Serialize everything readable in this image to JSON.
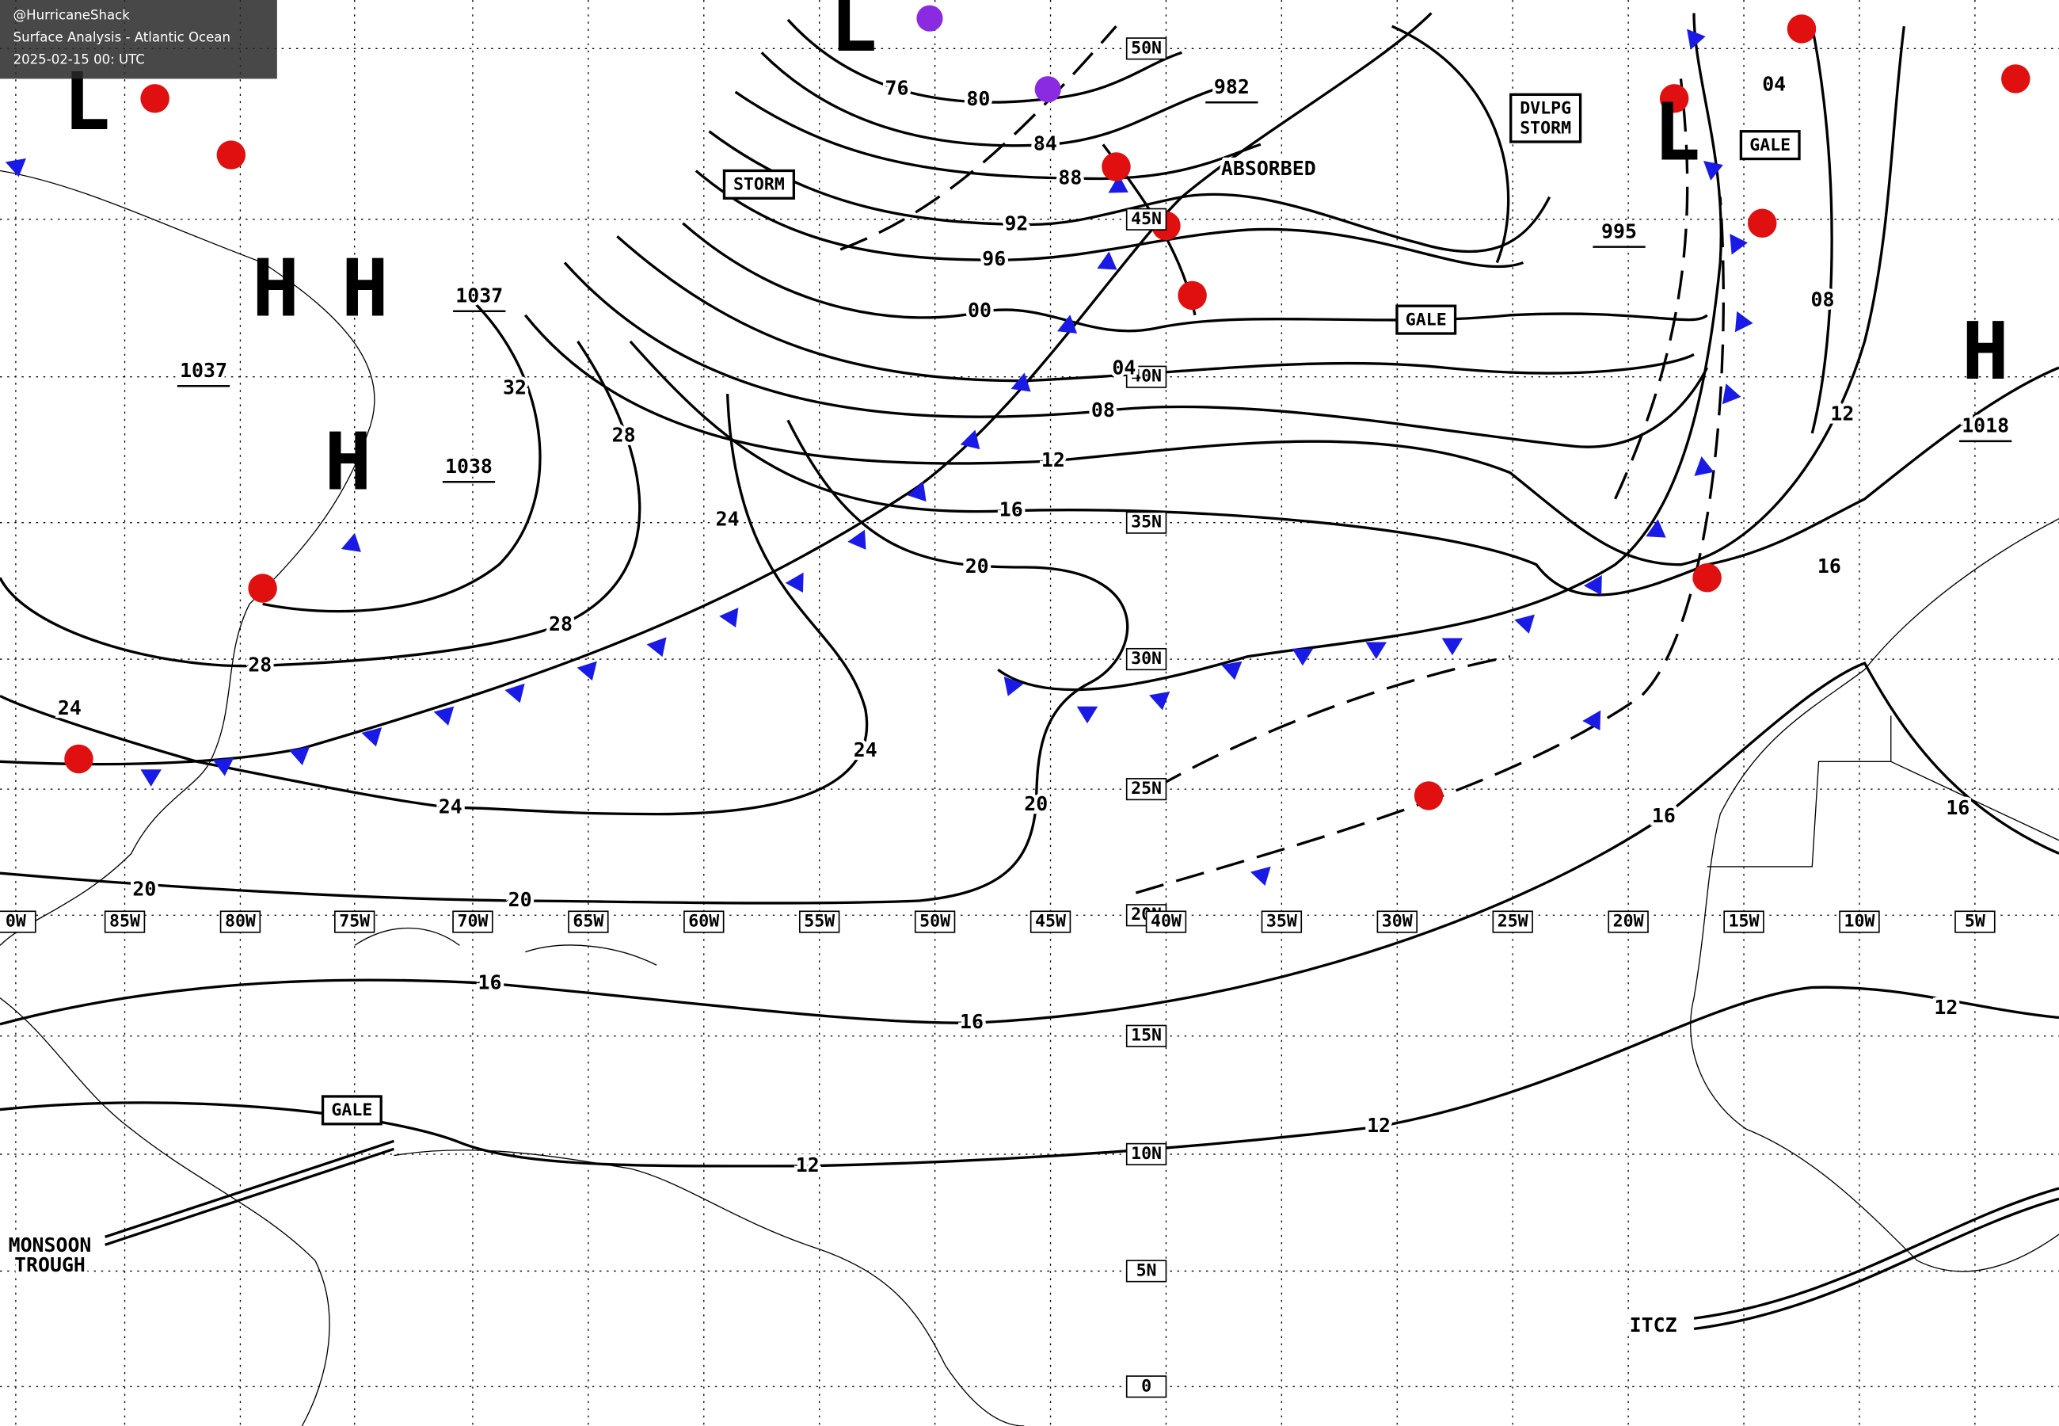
{
  "header": {
    "source": "@HurricaneShack",
    "title": "Surface Analysis - Atlantic Ocean",
    "timestamp": "2025-02-15 00: UTC"
  },
  "latitude_labels": [
    "50N",
    "45N",
    "40N",
    "35N",
    "30N",
    "25N",
    "20N",
    "15N",
    "10N",
    "5N",
    "0"
  ],
  "longitude_labels": [
    "0W",
    "85W",
    "80W",
    "75W",
    "70W",
    "65W",
    "60W",
    "55W",
    "50W",
    "45W",
    "40W",
    "35W",
    "30W",
    "25W",
    "20W",
    "15W",
    "10W",
    "5W"
  ],
  "isobar_labels": [
    "76",
    "80",
    "84",
    "88",
    "92",
    "96",
    "00",
    "04",
    "08",
    "12",
    "16",
    "20",
    "24",
    "28",
    "32",
    "28",
    "28",
    "24",
    "24",
    "24",
    "20",
    "20",
    "20",
    "16",
    "16",
    "12",
    "12",
    "12",
    "16",
    "16",
    "16",
    "12",
    "08",
    "04"
  ],
  "pressure_centers": [
    {
      "symbol": "H",
      "color": "#1010c8"
    },
    {
      "symbol": "H",
      "color": "#1010c8"
    },
    {
      "symbol": "H",
      "color": "#1010c8"
    },
    {
      "symbol": "H",
      "color": "#1010c8"
    },
    {
      "symbol": "L",
      "color": "#e01010"
    },
    {
      "symbol": "L",
      "color": "#e01010"
    },
    {
      "symbol": "L",
      "color": "#000000"
    }
  ],
  "pressure_values": [
    "1038",
    "1037",
    "1037",
    "982",
    "995",
    "1018"
  ],
  "boxed_labels": [
    {
      "lines": [
        "STORM"
      ]
    },
    {
      "lines": [
        "GALE"
      ]
    },
    {
      "lines": [
        "GALE"
      ]
    },
    {
      "lines": [
        "DVLPG",
        "STORM"
      ]
    },
    {
      "lines": [
        "GALE"
      ]
    }
  ],
  "annotations": [
    "ABSORBED",
    "MONSOON",
    "TROUGH",
    "ITCZ"
  ]
}
